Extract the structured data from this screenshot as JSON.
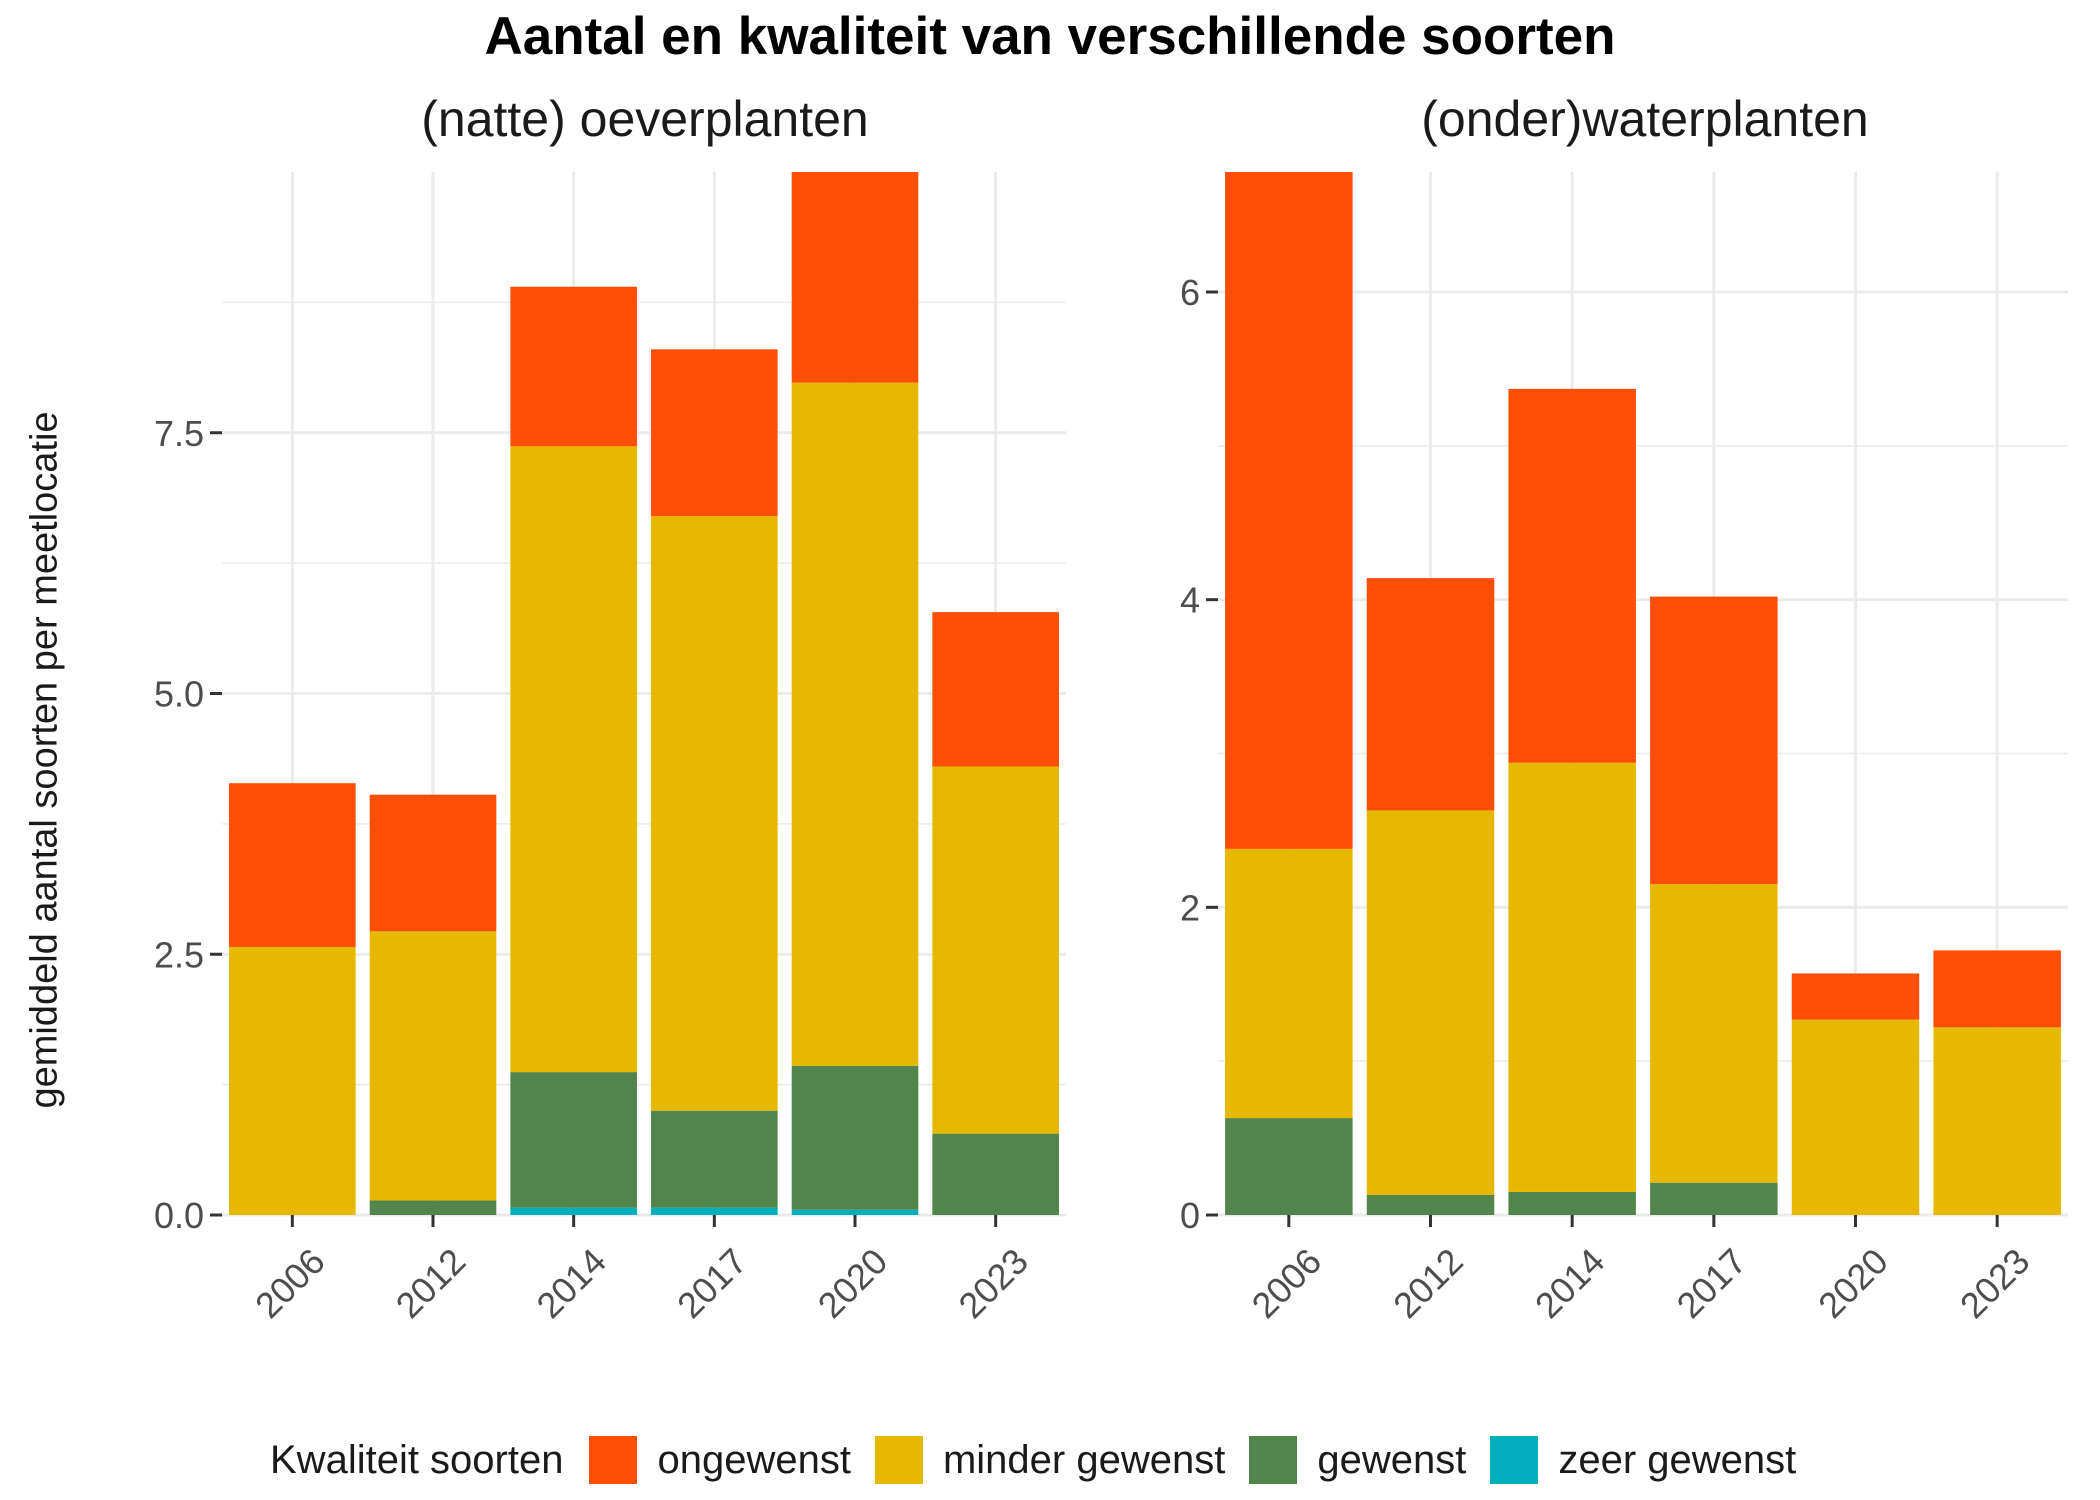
{
  "title": "Aantal en kwaliteit van verschillende soorten",
  "ylabel": "gemiddeld aantal soorten per meetlocatie",
  "legend": {
    "title": "Kwaliteit soorten",
    "items": [
      {
        "label": "ongewenst",
        "color": "#FC4E07"
      },
      {
        "label": "minder gewenst",
        "color": "#E7B800"
      },
      {
        "label": "gewenst",
        "color": "#52854C"
      },
      {
        "label": "zeer gewenst",
        "color": "#00AFBB"
      }
    ]
  },
  "chart_data": [
    {
      "type": "bar",
      "stacked": true,
      "title": "(natte) oeverplanten",
      "xlabel": "",
      "ylabel": "gemiddeld aantal soorten per meetlocatie",
      "categories": [
        "2006",
        "2012",
        "2014",
        "2017",
        "2020",
        "2023"
      ],
      "ylim": [
        0,
        10
      ],
      "yticks": [
        0.0,
        2.5,
        5.0,
        7.5
      ],
      "ytick_labels": [
        "0.0",
        "2.5",
        "5.0",
        "7.5"
      ],
      "grid": true,
      "series": [
        {
          "name": "zeer gewenst",
          "color": "#00AFBB",
          "values": [
            0,
            0,
            0.07,
            0.07,
            0.05,
            0
          ]
        },
        {
          "name": "gewenst",
          "color": "#52854C",
          "values": [
            0,
            0.14,
            1.3,
            0.93,
            1.38,
            0.78
          ]
        },
        {
          "name": "minder gewenst",
          "color": "#E7B800",
          "values": [
            2.57,
            2.58,
            6.0,
            5.7,
            6.55,
            3.52
          ]
        },
        {
          "name": "ongewenst",
          "color": "#FC4E07",
          "values": [
            1.57,
            1.31,
            1.53,
            1.6,
            2.02,
            1.48
          ]
        }
      ]
    },
    {
      "type": "bar",
      "stacked": true,
      "title": "(onder)waterplanten",
      "xlabel": "",
      "ylabel": "gemiddeld aantal soorten per meetlocatie",
      "categories": [
        "2006",
        "2012",
        "2014",
        "2017",
        "2020",
        "2023"
      ],
      "ylim": [
        0,
        6.78
      ],
      "yticks": [
        0,
        2,
        4,
        6
      ],
      "ytick_labels": [
        "0",
        "2",
        "4",
        "6"
      ],
      "grid": true,
      "series": [
        {
          "name": "zeer gewenst",
          "color": "#00AFBB",
          "values": [
            0,
            0,
            0,
            0,
            0,
            0
          ]
        },
        {
          "name": "gewenst",
          "color": "#52854C",
          "values": [
            0.63,
            0.13,
            0.15,
            0.21,
            0,
            0
          ]
        },
        {
          "name": "minder gewenst",
          "color": "#E7B800",
          "values": [
            1.75,
            2.5,
            2.79,
            1.94,
            1.27,
            1.22
          ]
        },
        {
          "name": "ongewenst",
          "color": "#FC4E07",
          "values": [
            4.4,
            1.51,
            2.43,
            1.87,
            0.3,
            0.5
          ]
        }
      ]
    }
  ]
}
